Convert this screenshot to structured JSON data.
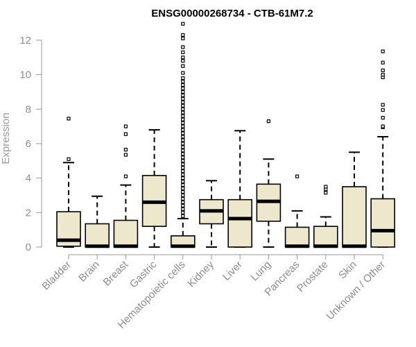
{
  "chart_data": {
    "type": "boxplot",
    "title": "ENSG00000268734 - CTB-61M7.2",
    "xlabel": "",
    "ylabel": "Expression",
    "ylim": [
      0,
      12.6
    ],
    "yticks": [
      0,
      2,
      4,
      6,
      8,
      10,
      12
    ],
    "box_fill": "#ede7cc",
    "outline_color": "#000000",
    "categories": [
      "Bladder",
      "Brain",
      "Breast",
      "Gastric",
      "Hematopoietic cells",
      "Kidney",
      "Liver",
      "Lung",
      "Pancreas",
      "Prostate",
      "Skin",
      "Unknown / Other"
    ],
    "boxes": [
      {
        "name": "Bladder",
        "whisker_low": 0,
        "q1": 0.05,
        "median": 0.4,
        "q3": 2.05,
        "whisker_high": 4.9,
        "outliers": [
          5.1,
          7.45
        ]
      },
      {
        "name": "Brain",
        "whisker_low": 0,
        "q1": 0,
        "median": 0.05,
        "q3": 1.35,
        "whisker_high": 2.95,
        "outliers": []
      },
      {
        "name": "Breast",
        "whisker_low": 0,
        "q1": 0,
        "median": 0.05,
        "q3": 1.55,
        "whisker_high": 3.6,
        "outliers": [
          4.1,
          5.35,
          5.65,
          6.55,
          7.0
        ]
      },
      {
        "name": "Gastric",
        "whisker_low": 0,
        "q1": 1.2,
        "median": 2.6,
        "q3": 4.15,
        "whisker_high": 6.8,
        "outliers": []
      },
      {
        "name": "Hematopoietic cells",
        "whisker_low": 0,
        "q1": 0,
        "median": 0.05,
        "q3": 0.65,
        "whisker_high": 1.65,
        "outliers": [
          1.8,
          2.0,
          2.2,
          2.4,
          2.6,
          2.8,
          3.0,
          3.2,
          3.4,
          3.6,
          3.8,
          4.0,
          4.2,
          4.4,
          4.6,
          4.8,
          5.0,
          5.2,
          5.4,
          5.6,
          5.8,
          6.0,
          6.2,
          6.4,
          6.6,
          6.8,
          7.0,
          7.2,
          7.4,
          7.6,
          7.8,
          8.0,
          8.2,
          8.4,
          8.6,
          8.8,
          9.0,
          9.2,
          9.4,
          9.6,
          9.8,
          10.1,
          10.5,
          10.8,
          11.0,
          11.3,
          11.6,
          12.1,
          12.3,
          12.95
        ]
      },
      {
        "name": "Kidney",
        "whisker_low": 0,
        "q1": 1.35,
        "median": 2.1,
        "q3": 2.75,
        "whisker_high": 3.85,
        "outliers": []
      },
      {
        "name": "Liver",
        "whisker_low": 0,
        "q1": 0,
        "median": 1.65,
        "q3": 2.75,
        "whisker_high": 6.75,
        "outliers": []
      },
      {
        "name": "Lung",
        "whisker_low": 0,
        "q1": 1.5,
        "median": 2.65,
        "q3": 3.65,
        "whisker_high": 5.1,
        "outliers": [
          7.3
        ]
      },
      {
        "name": "Pancreas",
        "whisker_low": 0,
        "q1": 0,
        "median": 0.05,
        "q3": 1.15,
        "whisker_high": 2.1,
        "outliers": [
          4.1
        ]
      },
      {
        "name": "Prostate",
        "whisker_low": 0,
        "q1": 0,
        "median": 0.05,
        "q3": 1.2,
        "whisker_high": 1.75,
        "outliers": [
          3.15,
          3.35,
          3.5
        ]
      },
      {
        "name": "Skin",
        "whisker_low": 0,
        "q1": 0,
        "median": 0.05,
        "q3": 3.5,
        "whisker_high": 5.5,
        "outliers": []
      },
      {
        "name": "Unknown / Other",
        "whisker_low": 0,
        "q1": 0,
        "median": 0.95,
        "q3": 2.8,
        "whisker_high": 6.4,
        "outliers": [
          6.95,
          7.0,
          7.5,
          7.95,
          8.25,
          9.85,
          10.0,
          10.25,
          10.7,
          11.35
        ]
      }
    ]
  }
}
